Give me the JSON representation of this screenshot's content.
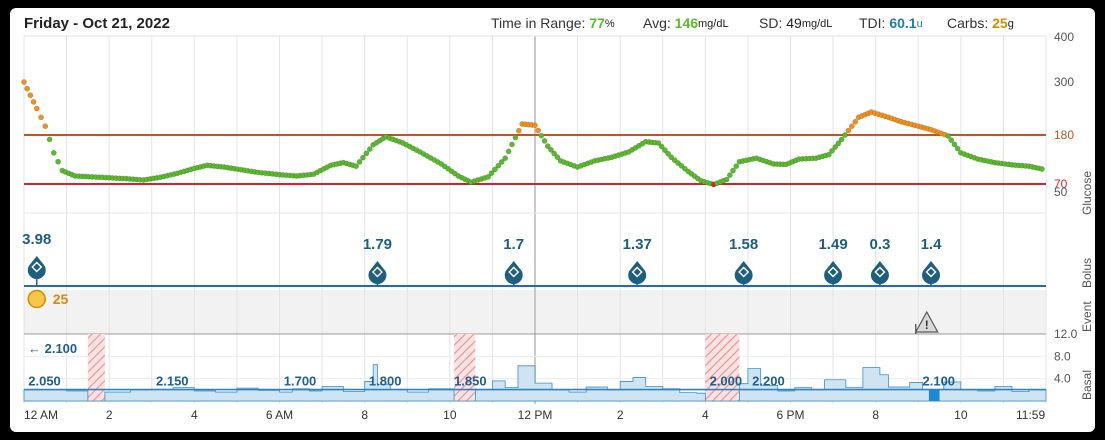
{
  "header": {
    "date": "Friday - Oct 21, 2022",
    "tir_label": "Time in Range:",
    "tir_value": "77",
    "tir_unit": "%",
    "avg_label": "Avg:",
    "avg_value": "146",
    "avg_unit": "mg/dL",
    "sd_label": "SD:",
    "sd_value": "49",
    "sd_unit": "mg/dL",
    "tdi_label": "TDI:",
    "tdi_value": "60.1",
    "tdi_unit": "u",
    "carbs_label": "Carbs:",
    "carbs_value": "25",
    "carbs_unit": "g"
  },
  "colors": {
    "in_range": "#5cb82f",
    "high": "#f0901e",
    "low": "#d42232",
    "high_line": "#c0561e",
    "low_line": "#d42232",
    "bolus": "#1f5f7e",
    "basal_fill": "#cfe4f2",
    "basal_line": "#3a8fc8",
    "carbs": "#d98a00",
    "tdi": "#1d7fa8"
  },
  "panel_labels": {
    "glucose": "Glucose",
    "bolus": "Bolus",
    "event": "Event",
    "basal": "Basal"
  },
  "chart_data": {
    "type": "line",
    "glucose": {
      "yticks": [
        400,
        300,
        180,
        70,
        50
      ],
      "high_threshold": 180,
      "low_threshold": 70,
      "points": [
        [
          0.0,
          300
        ],
        [
          0.3,
          240
        ],
        [
          0.5,
          200
        ],
        [
          0.7,
          140
        ],
        [
          0.9,
          100
        ],
        [
          1.2,
          88
        ],
        [
          1.6,
          86
        ],
        [
          2.0,
          84
        ],
        [
          2.4,
          82
        ],
        [
          2.8,
          79
        ],
        [
          3.2,
          85
        ],
        [
          3.6,
          94
        ],
        [
          4.0,
          105
        ],
        [
          4.3,
          112
        ],
        [
          4.7,
          108
        ],
        [
          5.1,
          102
        ],
        [
          5.5,
          96
        ],
        [
          6.0,
          91
        ],
        [
          6.4,
          88
        ],
        [
          6.8,
          92
        ],
        [
          7.2,
          112
        ],
        [
          7.5,
          118
        ],
        [
          7.8,
          110
        ],
        [
          8.2,
          158
        ],
        [
          8.5,
          176
        ],
        [
          8.9,
          162
        ],
        [
          9.3,
          142
        ],
        [
          9.8,
          115
        ],
        [
          10.2,
          88
        ],
        [
          10.5,
          74
        ],
        [
          10.9,
          86
        ],
        [
          11.3,
          128
        ],
        [
          11.7,
          205
        ],
        [
          12.0,
          202
        ],
        [
          12.3,
          155
        ],
        [
          12.6,
          122
        ],
        [
          13.0,
          108
        ],
        [
          13.4,
          122
        ],
        [
          13.8,
          130
        ],
        [
          14.2,
          142
        ],
        [
          14.6,
          165
        ],
        [
          14.9,
          162
        ],
        [
          15.2,
          130
        ],
        [
          15.6,
          98
        ],
        [
          15.9,
          77
        ],
        [
          16.2,
          69
        ],
        [
          16.5,
          80
        ],
        [
          16.8,
          120
        ],
        [
          17.2,
          128
        ],
        [
          17.6,
          115
        ],
        [
          17.9,
          114
        ],
        [
          18.2,
          126
        ],
        [
          18.6,
          128
        ],
        [
          18.9,
          136
        ],
        [
          19.2,
          170
        ],
        [
          19.6,
          220
        ],
        [
          19.9,
          232
        ],
        [
          20.3,
          220
        ],
        [
          20.6,
          210
        ],
        [
          21.0,
          200
        ],
        [
          21.3,
          192
        ],
        [
          21.7,
          178
        ],
        [
          22.0,
          140
        ],
        [
          22.4,
          126
        ],
        [
          22.8,
          118
        ],
        [
          23.2,
          113
        ],
        [
          23.6,
          110
        ],
        [
          23.98,
          102
        ]
      ]
    },
    "boluses": [
      {
        "time": 0.3,
        "units": "3.98"
      },
      {
        "time": 8.3,
        "units": "1.79"
      },
      {
        "time": 11.5,
        "units": "1.7"
      },
      {
        "time": 14.4,
        "units": "1.37"
      },
      {
        "time": 16.9,
        "units": "1.58"
      },
      {
        "time": 19.0,
        "units": "1.49"
      },
      {
        "time": 20.1,
        "units": "0.3"
      },
      {
        "time": 21.3,
        "units": "1.4"
      }
    ],
    "carbs": [
      {
        "time": 0.3,
        "grams": "25"
      }
    ],
    "events": [
      {
        "time": 21.2,
        "type": "warning"
      }
    ],
    "basal": {
      "yticks": [
        "12.0",
        "8.0",
        "4.0"
      ],
      "max": 12,
      "scheduled_rate_labels": [
        {
          "time": 0.1,
          "rate": "2.050"
        },
        {
          "time": 3.1,
          "rate": "2.150"
        },
        {
          "time": 6.1,
          "rate": "1.700"
        },
        {
          "time": 8.1,
          "rate": "1.800"
        },
        {
          "time": 10.1,
          "rate": "1.850"
        },
        {
          "time": 16.1,
          "rate": "2.000"
        },
        {
          "time": 17.1,
          "rate": "2.200"
        },
        {
          "time": 21.1,
          "rate": "2.100"
        }
      ],
      "previous_rate_label": "← 2.100",
      "suspended": [
        [
          1.5,
          1.9
        ],
        [
          10.1,
          10.6
        ],
        [
          16.0,
          16.8
        ]
      ],
      "segments": [
        [
          0.0,
          2.0
        ],
        [
          1.0,
          1.8
        ],
        [
          1.5,
          0
        ],
        [
          1.9,
          1.6
        ],
        [
          2.5,
          2.0
        ],
        [
          3.0,
          2.1
        ],
        [
          3.5,
          2.4
        ],
        [
          4.0,
          1.8
        ],
        [
          4.5,
          1.6
        ],
        [
          5.0,
          2.3
        ],
        [
          5.5,
          1.9
        ],
        [
          6.0,
          1.6
        ],
        [
          6.3,
          2.2
        ],
        [
          6.7,
          1.8
        ],
        [
          7.0,
          2.6
        ],
        [
          7.5,
          1.7
        ],
        [
          8.0,
          3.5
        ],
        [
          8.2,
          6.5
        ],
        [
          8.3,
          3.0
        ],
        [
          8.6,
          2.1
        ],
        [
          9.0,
          1.6
        ],
        [
          9.5,
          2.2
        ],
        [
          10.1,
          0
        ],
        [
          10.6,
          2.1
        ],
        [
          11.0,
          3.6
        ],
        [
          11.3,
          2.4
        ],
        [
          11.6,
          6.3
        ],
        [
          12.0,
          3.2
        ],
        [
          12.4,
          2.0
        ],
        [
          12.8,
          1.6
        ],
        [
          13.2,
          2.5
        ],
        [
          13.7,
          2.0
        ],
        [
          14.0,
          3.5
        ],
        [
          14.3,
          4.2
        ],
        [
          14.6,
          2.6
        ],
        [
          15.0,
          2.2
        ],
        [
          15.4,
          1.5
        ],
        [
          15.8,
          1.4
        ],
        [
          16.0,
          0
        ],
        [
          16.8,
          3.1
        ],
        [
          17.0,
          5.8
        ],
        [
          17.3,
          2.8
        ],
        [
          17.7,
          1.8
        ],
        [
          18.1,
          2.4
        ],
        [
          18.5,
          2.0
        ],
        [
          18.8,
          3.8
        ],
        [
          19.3,
          2.4
        ],
        [
          19.7,
          6.0
        ],
        [
          20.1,
          4.7
        ],
        [
          20.3,
          2.5
        ],
        [
          20.8,
          3.3
        ],
        [
          21.1,
          2.1
        ],
        [
          21.3,
          2.1
        ],
        [
          21.6,
          3.4
        ],
        [
          22.0,
          2.0
        ],
        [
          22.4,
          1.8
        ],
        [
          22.8,
          2.6
        ],
        [
          23.2,
          1.7
        ],
        [
          23.6,
          2.0
        ],
        [
          24.0,
          2.0
        ]
      ]
    },
    "x_ticks": [
      "12 AM",
      "2",
      "4",
      "6 AM",
      "8",
      "10",
      "12 PM",
      "2",
      "4",
      "6 PM",
      "8",
      "10",
      "11:59"
    ]
  }
}
